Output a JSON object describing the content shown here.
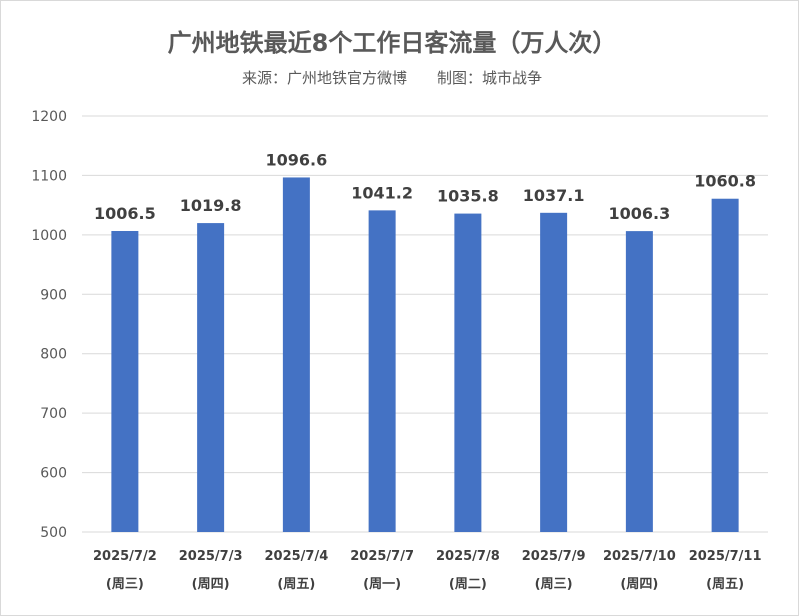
{
  "chart_data": {
    "type": "bar",
    "title": "广州地铁最近8个工作日客流量（万人次）",
    "subtitle": "来源：广州地铁官方微博　　制图：城市战争",
    "categories": [
      "2025/7/2",
      "2025/7/3",
      "2025/7/4",
      "2025/7/7",
      "2025/7/8",
      "2025/7/9",
      "2025/7/10",
      "2025/7/11"
    ],
    "weekdays": [
      "(周三)",
      "(周四)",
      "(周五)",
      "(周一)",
      "(周二)",
      "(周三)",
      "(周四)",
      "(周五)"
    ],
    "values": [
      1006.5,
      1019.8,
      1096.6,
      1041.2,
      1035.8,
      1037.1,
      1006.3,
      1060.8
    ],
    "value_labels": [
      "1006.5",
      "1019.8",
      "1096.6",
      "1041.2",
      "1035.8",
      "1037.1",
      "1006.3",
      "1060.8"
    ],
    "ylim": [
      500,
      1200
    ],
    "yticks": [
      "500",
      "600",
      "700",
      "800",
      "900",
      "1000",
      "1100",
      "1200"
    ],
    "grid": true,
    "bar_color": "#4472c4"
  }
}
